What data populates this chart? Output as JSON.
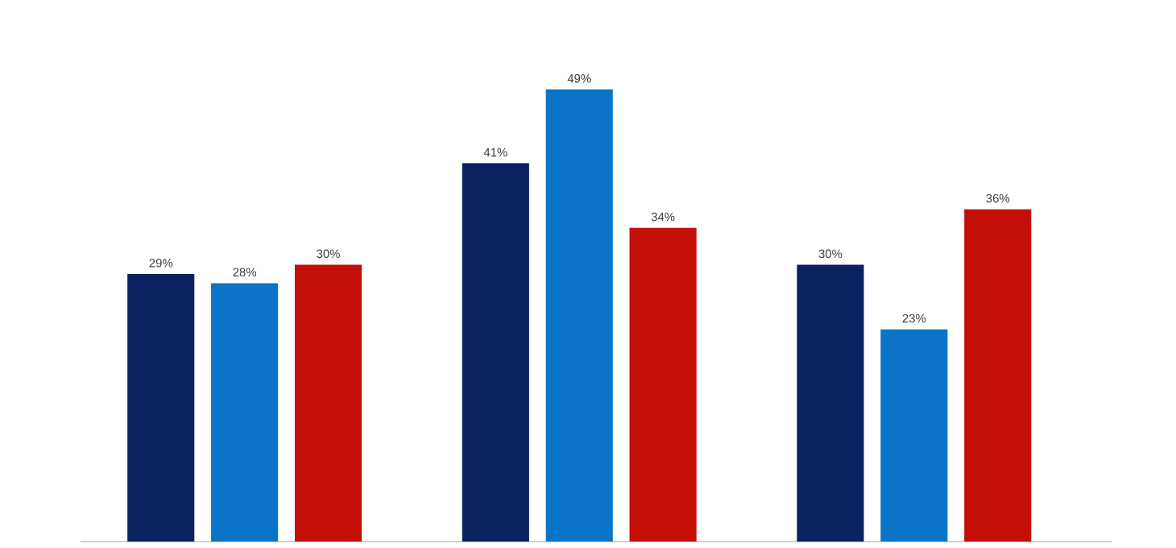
{
  "chart_data": {
    "type": "bar",
    "categories": [
      null,
      null,
      null
    ],
    "series": [
      {
        "color": "#0b2260",
        "values": [
          29,
          41,
          30
        ],
        "value_labels": [
          "29%",
          "41%",
          "30%"
        ]
      },
      {
        "color": "#0a74c6",
        "values": [
          28,
          49,
          23
        ],
        "value_labels": [
          "28%",
          "49%",
          "23%"
        ]
      },
      {
        "color": "#c40f08",
        "values": [
          30,
          34,
          36
        ],
        "value_labels": [
          "30%",
          "34%",
          "36%"
        ]
      }
    ]
  }
}
